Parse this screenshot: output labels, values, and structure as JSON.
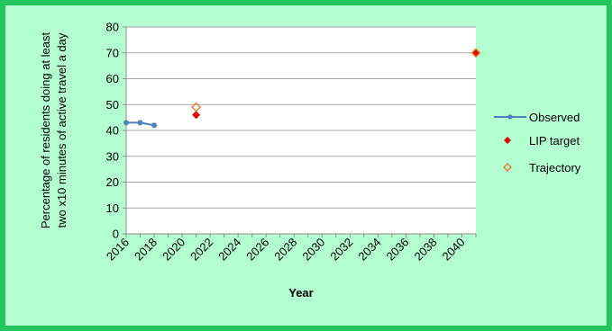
{
  "chart_data": {
    "type": "scatter",
    "title": "",
    "xlabel": "Year",
    "ylabel_lines": [
      "Percentage of residents doing at least",
      "two x10 minutes of active travel a day"
    ],
    "xlim": [
      2016,
      2041
    ],
    "ylim": [
      0,
      80
    ],
    "y_ticks": [
      0,
      10,
      20,
      30,
      40,
      50,
      60,
      70,
      80
    ],
    "x_ticks": [
      2016,
      2018,
      2020,
      2022,
      2024,
      2026,
      2028,
      2030,
      2032,
      2034,
      2036,
      2038,
      2040
    ],
    "grid": "horizontal",
    "legend_position": "right",
    "series": [
      {
        "name": "Observed",
        "kind": "line-marker",
        "color": "#4f81bd",
        "points": [
          [
            2016,
            43
          ],
          [
            2017,
            43
          ],
          [
            2018,
            42
          ]
        ]
      },
      {
        "name": "LIP target",
        "kind": "filled-diamond",
        "color": "#e00000",
        "points": [
          [
            2021,
            46
          ],
          [
            2041,
            70
          ]
        ]
      },
      {
        "name": "Trajectory",
        "kind": "open-diamond",
        "color": "#e8833a",
        "points": [
          [
            2021,
            49
          ],
          [
            2041,
            70
          ]
        ]
      }
    ]
  }
}
